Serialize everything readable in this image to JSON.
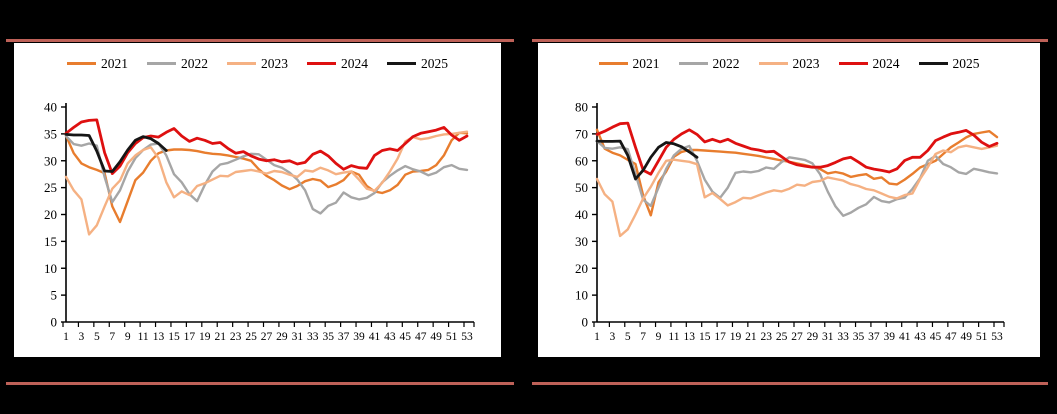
{
  "page": {
    "background_color": "#000000",
    "panel_color": "#ffffff",
    "rule_color": "#BE6158",
    "axis_color": "#000000"
  },
  "chart_data": [
    {
      "type": "line",
      "title": "",
      "xlabel": "",
      "ylabel": "",
      "grid": false,
      "legend_position": "top",
      "x_unit": "week",
      "x_max": 53,
      "x_tick_labels": [
        1,
        3,
        5,
        7,
        9,
        11,
        13,
        15,
        17,
        19,
        21,
        23,
        25,
        27,
        29,
        31,
        33,
        35,
        37,
        39,
        41,
        43,
        45,
        47,
        49,
        51,
        53
      ],
      "ylim": [
        0,
        40
      ],
      "ytick_step": 5,
      "series": [
        {
          "name": "2021",
          "color": "#E87D2E",
          "values": [
            34.7,
            31.4,
            29.5,
            28.8,
            28.3,
            27.7,
            21.5,
            18.6,
            22.5,
            26.4,
            27.8,
            30.0,
            31.4,
            31.9,
            32.1,
            32.1,
            32.0,
            31.8,
            31.5,
            31.3,
            31.2,
            31.0,
            30.7,
            30.4,
            30.0,
            28.4,
            27.2,
            26.4,
            25.4,
            24.7,
            25.3,
            26.2,
            26.6,
            26.3,
            25.1,
            25.6,
            26.4,
            28.0,
            27.4,
            25.3,
            24.3,
            24.0,
            24.5,
            25.5,
            27.4,
            28.0,
            28.1,
            28.3,
            29.2,
            31.0,
            33.8,
            35.2,
            35.1
          ]
        },
        {
          "name": "2022",
          "color": "#A6A6A6",
          "values": [
            34.6,
            33.1,
            32.8,
            33.2,
            32.8,
            27.0,
            22.3,
            24.5,
            28.0,
            30.5,
            32.0,
            33.0,
            33.2,
            31.0,
            27.5,
            26.0,
            23.8,
            22.5,
            25.5,
            28.0,
            29.3,
            29.6,
            30.2,
            30.8,
            31.3,
            31.2,
            30.2,
            29.2,
            28.7,
            27.8,
            26.5,
            24.5,
            21.0,
            20.2,
            21.6,
            22.2,
            24.1,
            23.2,
            22.8,
            23.1,
            24.0,
            26.0,
            27.2,
            28.2,
            29.0,
            28.4,
            28.0,
            27.3,
            27.8,
            28.8,
            29.2,
            28.5,
            28.3
          ]
        },
        {
          "name": "2023",
          "color": "#F5B183",
          "values": [
            27.0,
            24.5,
            22.8,
            16.3,
            18.0,
            21.5,
            24.8,
            26.3,
            29.5,
            31.0,
            32.0,
            32.5,
            30.5,
            26.0,
            23.2,
            24.3,
            23.6,
            25.3,
            25.8,
            26.5,
            27.2,
            27.1,
            27.9,
            28.1,
            28.3,
            28.0,
            27.6,
            28.1,
            27.9,
            27.4,
            27.0,
            28.2,
            28.0,
            28.7,
            28.2,
            27.5,
            27.8,
            28.0,
            26.5,
            24.8,
            24.4,
            25.9,
            28.0,
            30.4,
            33.6,
            34.4,
            34.0,
            34.2,
            34.6,
            34.9,
            35.0,
            35.2,
            35.4
          ]
        },
        {
          "name": "2024",
          "color": "#DE1010",
          "values": [
            35.1,
            36.2,
            37.2,
            37.5,
            37.6,
            31.5,
            27.6,
            29.0,
            31.5,
            33.2,
            34.3,
            34.6,
            34.4,
            35.3,
            36.0,
            34.6,
            33.6,
            34.2,
            33.8,
            33.2,
            33.4,
            32.3,
            31.4,
            31.7,
            30.9,
            30.3,
            30.0,
            30.2,
            29.8,
            30.0,
            29.4,
            29.7,
            31.2,
            31.8,
            30.9,
            29.5,
            28.4,
            29.1,
            28.7,
            28.6,
            31.0,
            31.9,
            32.2,
            31.9,
            33.2,
            34.5,
            35.1,
            35.4,
            35.7,
            36.2,
            34.8,
            33.8,
            34.6
          ]
        },
        {
          "name": "2025",
          "color": "#161616",
          "values": [
            34.9,
            34.8,
            34.8,
            34.7,
            31.8,
            28.1,
            28.0,
            29.8,
            32.0,
            33.8,
            34.5,
            34.1,
            33.2,
            31.9
          ]
        }
      ]
    },
    {
      "type": "line",
      "title": "",
      "xlabel": "",
      "ylabel": "",
      "grid": false,
      "legend_position": "top",
      "x_unit": "week",
      "x_max": 53,
      "x_tick_labels": [
        1,
        3,
        5,
        7,
        9,
        11,
        13,
        15,
        17,
        19,
        21,
        23,
        25,
        27,
        29,
        31,
        33,
        35,
        37,
        39,
        41,
        43,
        45,
        47,
        49,
        51,
        53
      ],
      "ylim": [
        0,
        80
      ],
      "ytick_step": 10,
      "series": [
        {
          "name": "2021",
          "color": "#E87D2E",
          "values": [
            71.5,
            64.5,
            63.0,
            62.0,
            60.3,
            58.8,
            47.0,
            39.7,
            52.0,
            56.0,
            61.5,
            63.3,
            64.0,
            64.0,
            63.8,
            63.6,
            63.4,
            63.2,
            63.0,
            62.6,
            62.2,
            61.8,
            61.2,
            60.7,
            60.1,
            59.6,
            59.0,
            58.4,
            57.7,
            56.9,
            55.3,
            55.8,
            55.2,
            54.0,
            54.6,
            55.0,
            53.3,
            53.8,
            51.5,
            51.2,
            53.0,
            55.1,
            57.5,
            58.7,
            60.0,
            62.5,
            65.0,
            66.8,
            68.7,
            70.0,
            70.5,
            71.0,
            68.8
          ]
        },
        {
          "name": "2022",
          "color": "#A6A6A6",
          "values": [
            67.3,
            64.8,
            64.5,
            65.0,
            64.3,
            55.0,
            45.5,
            43.2,
            50.0,
            57.0,
            62.0,
            64.5,
            65.5,
            60.0,
            53.0,
            48.5,
            46.2,
            50.0,
            55.5,
            56.0,
            55.7,
            56.2,
            57.5,
            57.0,
            59.5,
            61.3,
            60.8,
            60.3,
            59.0,
            55.0,
            48.5,
            43.0,
            39.5,
            40.7,
            42.5,
            43.8,
            46.5,
            45.0,
            44.5,
            45.7,
            46.3,
            49.5,
            53.5,
            60.0,
            61.8,
            58.8,
            57.6,
            55.7,
            55.1,
            57.0,
            56.4,
            55.7,
            55.3
          ]
        },
        {
          "name": "2023",
          "color": "#F5B183",
          "values": [
            53.2,
            47.5,
            44.8,
            32.0,
            34.5,
            40.0,
            46.0,
            50.3,
            55.5,
            60.0,
            60.4,
            60.0,
            59.6,
            58.7,
            46.4,
            48.0,
            45.8,
            43.4,
            44.6,
            46.2,
            46.0,
            47.1,
            48.2,
            49.0,
            48.6,
            49.6,
            51.1,
            50.7,
            52.1,
            52.5,
            53.8,
            53.2,
            52.6,
            51.3,
            50.6,
            49.5,
            49.0,
            47.8,
            46.6,
            46.0,
            47.2,
            47.8,
            53.2,
            57.6,
            62.5,
            63.8,
            63.2,
            65.0,
            65.6,
            65.0,
            64.4,
            65.0,
            65.6
          ]
        },
        {
          "name": "2024",
          "color": "#DE1010",
          "values": [
            69.8,
            71.0,
            72.5,
            73.8,
            74.0,
            65.0,
            56.5,
            55.0,
            60.0,
            65.0,
            68.0,
            70.0,
            71.5,
            69.8,
            67.0,
            68.0,
            67.0,
            68.0,
            66.5,
            65.5,
            64.5,
            64.0,
            63.3,
            63.5,
            61.5,
            59.5,
            58.5,
            58.0,
            57.6,
            57.6,
            58.2,
            59.4,
            60.7,
            61.3,
            59.5,
            57.6,
            56.9,
            56.4,
            55.8,
            57.0,
            60.1,
            61.3,
            61.3,
            63.8,
            67.5,
            68.8,
            70.0,
            70.6,
            71.3,
            69.5,
            66.9,
            65.3,
            66.5
          ]
        },
        {
          "name": "2025",
          "color": "#161616",
          "values": [
            67.3,
            67.2,
            67.2,
            67.3,
            62.0,
            53.2,
            56.5,
            61.3,
            65.0,
            66.8,
            66.3,
            65.2,
            63.3,
            61.3
          ]
        }
      ]
    }
  ]
}
